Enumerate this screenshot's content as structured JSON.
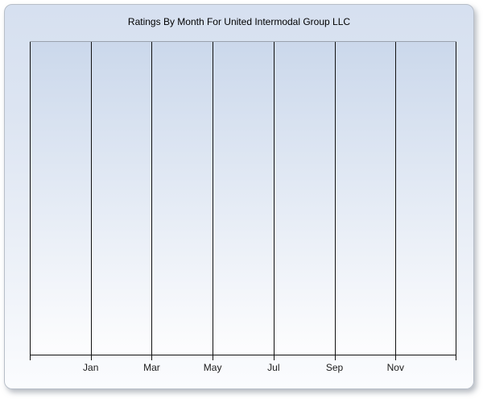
{
  "chart_data": {
    "type": "line",
    "title": "Ratings By Month For United Intermodal Group LLC",
    "categories": [
      "Jan",
      "Mar",
      "May",
      "Jul",
      "Sep",
      "Nov"
    ],
    "series": [],
    "x_axis": {
      "tick_labels": [
        "Jan",
        "Mar",
        "May",
        "Jul",
        "Sep",
        "Nov"
      ],
      "gridline_divisions": 7,
      "interior_gridlines": 6,
      "labels_centered_under_gridlines": true
    },
    "y_axis": {
      "tick_labels": [],
      "visible_labels": "none"
    },
    "grid": "vertical gridlines only",
    "legend": "none",
    "plotted_points": "none (empty plot area)"
  },
  "colors": {
    "panel_bg_top": "#d6e0f0",
    "panel_bg_bottom": "#fbfcfe",
    "panel_border": "#b7bec8",
    "plot_bg_top": "#cbd8eb",
    "plot_bg_bottom": "#fdfdfe",
    "plot_top_border": "#9aa2ad",
    "grid_color": "#121212",
    "title_color": "#000000",
    "tick_label_color": "#1a1a1a"
  }
}
